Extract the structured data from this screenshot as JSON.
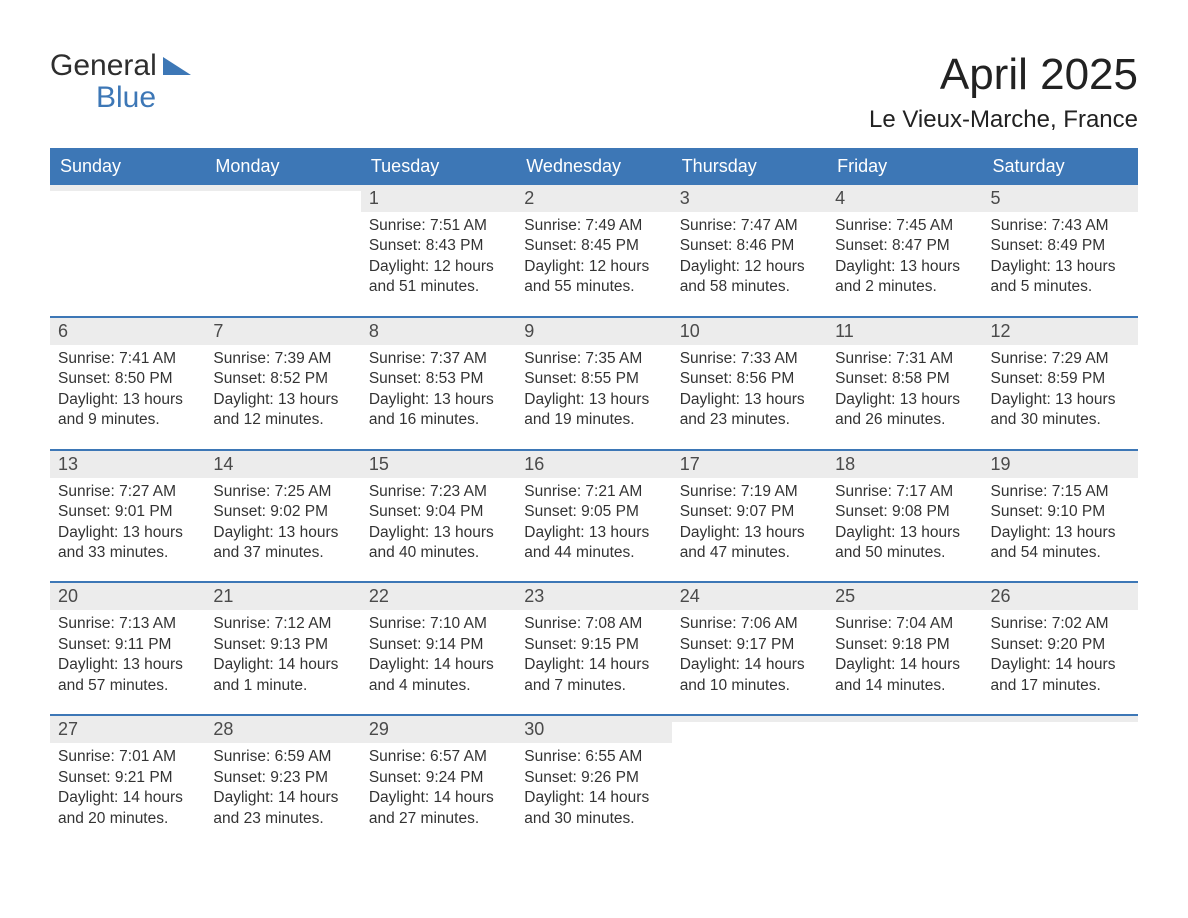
{
  "logo": {
    "word1": "General",
    "word2": "Blue",
    "tri_color": "#3d77b6",
    "text_dark": "#2e2e2e"
  },
  "header": {
    "month_title": "April 2025",
    "location": "Le Vieux-Marche, France"
  },
  "colors": {
    "header_bg": "#3d77b6",
    "header_fg": "#ffffff",
    "daynum_bg": "#ececec",
    "week_border": "#3d77b6",
    "body_text": "#333333",
    "page_bg": "#ffffff"
  },
  "typography": {
    "month_title_pt": 44,
    "location_pt": 24,
    "dow_pt": 18,
    "daynum_pt": 18,
    "body_pt": 15.5,
    "logo_pt": 30,
    "family": "Arial"
  },
  "layout": {
    "columns": 7,
    "rows": 5,
    "first_day_column": 2,
    "aspect": "1188x918"
  },
  "days_of_week": [
    "Sunday",
    "Monday",
    "Tuesday",
    "Wednesday",
    "Thursday",
    "Friday",
    "Saturday"
  ],
  "weeks": [
    [
      {
        "num": "",
        "sunrise": "",
        "sunset": "",
        "daylight": ""
      },
      {
        "num": "",
        "sunrise": "",
        "sunset": "",
        "daylight": ""
      },
      {
        "num": "1",
        "sunrise": "Sunrise: 7:51 AM",
        "sunset": "Sunset: 8:43 PM",
        "daylight": "Daylight: 12 hours and 51 minutes."
      },
      {
        "num": "2",
        "sunrise": "Sunrise: 7:49 AM",
        "sunset": "Sunset: 8:45 PM",
        "daylight": "Daylight: 12 hours and 55 minutes."
      },
      {
        "num": "3",
        "sunrise": "Sunrise: 7:47 AM",
        "sunset": "Sunset: 8:46 PM",
        "daylight": "Daylight: 12 hours and 58 minutes."
      },
      {
        "num": "4",
        "sunrise": "Sunrise: 7:45 AM",
        "sunset": "Sunset: 8:47 PM",
        "daylight": "Daylight: 13 hours and 2 minutes."
      },
      {
        "num": "5",
        "sunrise": "Sunrise: 7:43 AM",
        "sunset": "Sunset: 8:49 PM",
        "daylight": "Daylight: 13 hours and 5 minutes."
      }
    ],
    [
      {
        "num": "6",
        "sunrise": "Sunrise: 7:41 AM",
        "sunset": "Sunset: 8:50 PM",
        "daylight": "Daylight: 13 hours and 9 minutes."
      },
      {
        "num": "7",
        "sunrise": "Sunrise: 7:39 AM",
        "sunset": "Sunset: 8:52 PM",
        "daylight": "Daylight: 13 hours and 12 minutes."
      },
      {
        "num": "8",
        "sunrise": "Sunrise: 7:37 AM",
        "sunset": "Sunset: 8:53 PM",
        "daylight": "Daylight: 13 hours and 16 minutes."
      },
      {
        "num": "9",
        "sunrise": "Sunrise: 7:35 AM",
        "sunset": "Sunset: 8:55 PM",
        "daylight": "Daylight: 13 hours and 19 minutes."
      },
      {
        "num": "10",
        "sunrise": "Sunrise: 7:33 AM",
        "sunset": "Sunset: 8:56 PM",
        "daylight": "Daylight: 13 hours and 23 minutes."
      },
      {
        "num": "11",
        "sunrise": "Sunrise: 7:31 AM",
        "sunset": "Sunset: 8:58 PM",
        "daylight": "Daylight: 13 hours and 26 minutes."
      },
      {
        "num": "12",
        "sunrise": "Sunrise: 7:29 AM",
        "sunset": "Sunset: 8:59 PM",
        "daylight": "Daylight: 13 hours and 30 minutes."
      }
    ],
    [
      {
        "num": "13",
        "sunrise": "Sunrise: 7:27 AM",
        "sunset": "Sunset: 9:01 PM",
        "daylight": "Daylight: 13 hours and 33 minutes."
      },
      {
        "num": "14",
        "sunrise": "Sunrise: 7:25 AM",
        "sunset": "Sunset: 9:02 PM",
        "daylight": "Daylight: 13 hours and 37 minutes."
      },
      {
        "num": "15",
        "sunrise": "Sunrise: 7:23 AM",
        "sunset": "Sunset: 9:04 PM",
        "daylight": "Daylight: 13 hours and 40 minutes."
      },
      {
        "num": "16",
        "sunrise": "Sunrise: 7:21 AM",
        "sunset": "Sunset: 9:05 PM",
        "daylight": "Daylight: 13 hours and 44 minutes."
      },
      {
        "num": "17",
        "sunrise": "Sunrise: 7:19 AM",
        "sunset": "Sunset: 9:07 PM",
        "daylight": "Daylight: 13 hours and 47 minutes."
      },
      {
        "num": "18",
        "sunrise": "Sunrise: 7:17 AM",
        "sunset": "Sunset: 9:08 PM",
        "daylight": "Daylight: 13 hours and 50 minutes."
      },
      {
        "num": "19",
        "sunrise": "Sunrise: 7:15 AM",
        "sunset": "Sunset: 9:10 PM",
        "daylight": "Daylight: 13 hours and 54 minutes."
      }
    ],
    [
      {
        "num": "20",
        "sunrise": "Sunrise: 7:13 AM",
        "sunset": "Sunset: 9:11 PM",
        "daylight": "Daylight: 13 hours and 57 minutes."
      },
      {
        "num": "21",
        "sunrise": "Sunrise: 7:12 AM",
        "sunset": "Sunset: 9:13 PM",
        "daylight": "Daylight: 14 hours and 1 minute."
      },
      {
        "num": "22",
        "sunrise": "Sunrise: 7:10 AM",
        "sunset": "Sunset: 9:14 PM",
        "daylight": "Daylight: 14 hours and 4 minutes."
      },
      {
        "num": "23",
        "sunrise": "Sunrise: 7:08 AM",
        "sunset": "Sunset: 9:15 PM",
        "daylight": "Daylight: 14 hours and 7 minutes."
      },
      {
        "num": "24",
        "sunrise": "Sunrise: 7:06 AM",
        "sunset": "Sunset: 9:17 PM",
        "daylight": "Daylight: 14 hours and 10 minutes."
      },
      {
        "num": "25",
        "sunrise": "Sunrise: 7:04 AM",
        "sunset": "Sunset: 9:18 PM",
        "daylight": "Daylight: 14 hours and 14 minutes."
      },
      {
        "num": "26",
        "sunrise": "Sunrise: 7:02 AM",
        "sunset": "Sunset: 9:20 PM",
        "daylight": "Daylight: 14 hours and 17 minutes."
      }
    ],
    [
      {
        "num": "27",
        "sunrise": "Sunrise: 7:01 AM",
        "sunset": "Sunset: 9:21 PM",
        "daylight": "Daylight: 14 hours and 20 minutes."
      },
      {
        "num": "28",
        "sunrise": "Sunrise: 6:59 AM",
        "sunset": "Sunset: 9:23 PM",
        "daylight": "Daylight: 14 hours and 23 minutes."
      },
      {
        "num": "29",
        "sunrise": "Sunrise: 6:57 AM",
        "sunset": "Sunset: 9:24 PM",
        "daylight": "Daylight: 14 hours and 27 minutes."
      },
      {
        "num": "30",
        "sunrise": "Sunrise: 6:55 AM",
        "sunset": "Sunset: 9:26 PM",
        "daylight": "Daylight: 14 hours and 30 minutes."
      },
      {
        "num": "",
        "sunrise": "",
        "sunset": "",
        "daylight": ""
      },
      {
        "num": "",
        "sunrise": "",
        "sunset": "",
        "daylight": ""
      },
      {
        "num": "",
        "sunrise": "",
        "sunset": "",
        "daylight": ""
      }
    ]
  ]
}
